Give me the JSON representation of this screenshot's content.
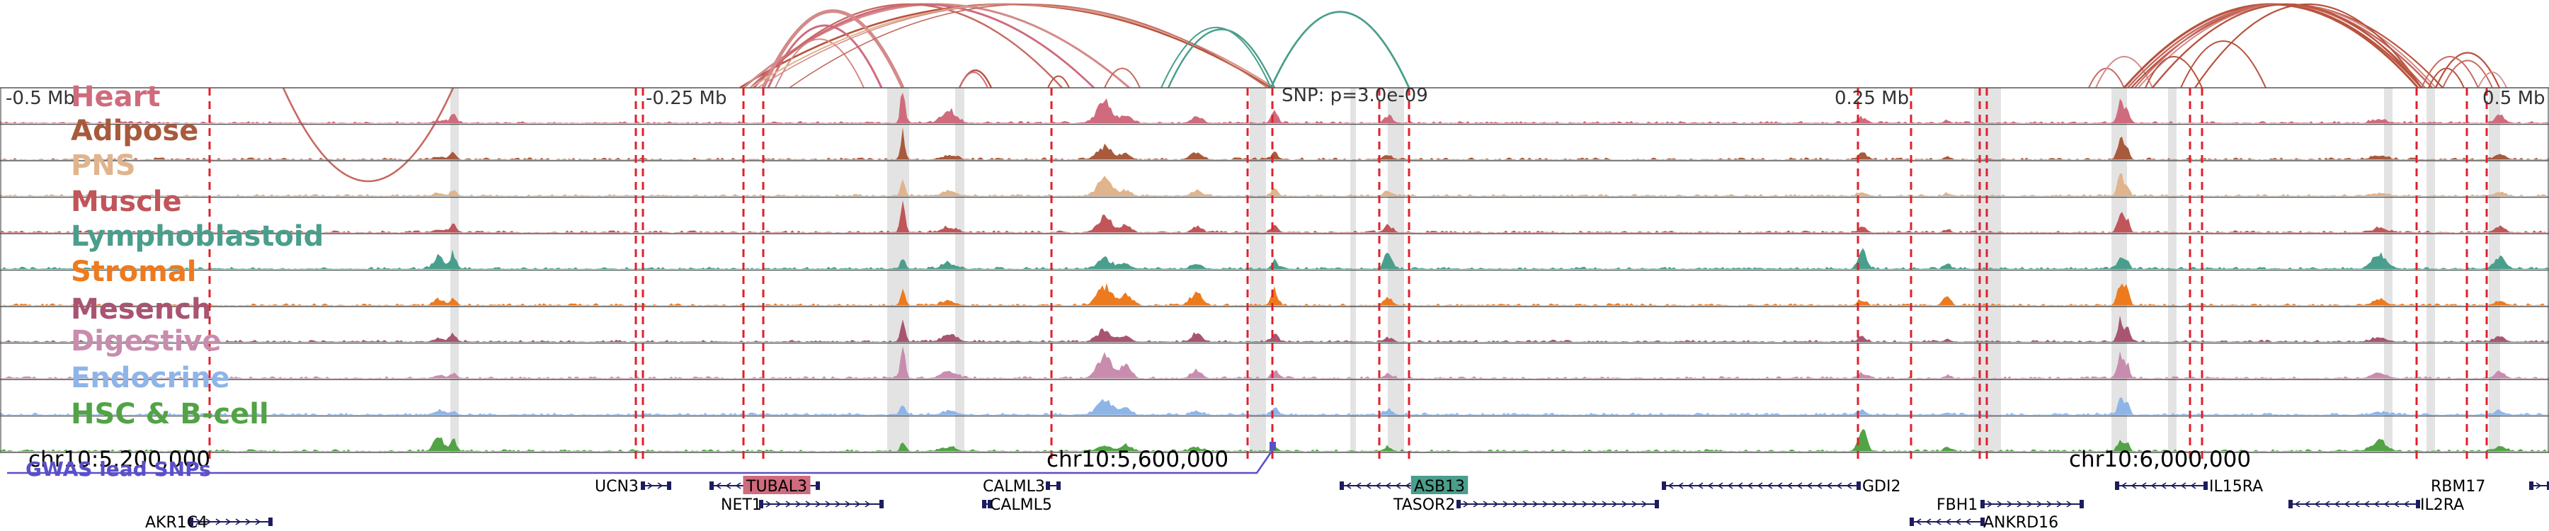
{
  "colors": {
    "highlight": "#e3e3e3",
    "dashed": "#e0202a",
    "axis": "#555555",
    "snp": "#5b4fc8",
    "gene": "#1c1c5e",
    "tubal3_bg": "#cf6b7d",
    "asb13_bg": "#4a9e8c"
  },
  "region": {
    "scale_labels": [
      "-0.5 Mb",
      "-0.25 Mb",
      "0.25 Mb",
      "0.5 Mb"
    ],
    "snp_annotation": "SNP: p=3.0e-09",
    "coordinates": [
      "chr10:5,200,000",
      "chr10:5,600,000",
      "chr10:6,000,000"
    ],
    "snp_track_title": "GWAS lead SNPs"
  },
  "tracks": [
    {
      "name": "Heart",
      "color": "#cf6b7d"
    },
    {
      "name": "Adipose",
      "color": "#a85a3c"
    },
    {
      "name": "PNS",
      "color": "#e0b48c"
    },
    {
      "name": "Muscle",
      "color": "#c0555a"
    },
    {
      "name": "Lymphoblastoid",
      "color": "#4a9e8c"
    },
    {
      "name": "Stromal",
      "color": "#ee7a1e"
    },
    {
      "name": "Mesench",
      "color": "#a85472"
    },
    {
      "name": "Digestive",
      "color": "#c88cae"
    },
    {
      "name": "Endocrine",
      "color": "#8fb5e8"
    },
    {
      "name": "HSC & B-cell",
      "color": "#52a346"
    }
  ],
  "arc_colors": [
    "#c66a60",
    "#b8533e",
    "#d48a8a",
    "#cf6b7d",
    "#4a9e8c",
    "#e0b48c"
  ],
  "genes": [
    {
      "name": "UCN3",
      "strand": "+",
      "highlight": false
    },
    {
      "name": "TUBAL3",
      "strand": "-",
      "highlight": true
    },
    {
      "name": "NET1",
      "strand": "+",
      "highlight": false
    },
    {
      "name": "AKR1C4",
      "strand": "+",
      "highlight": false
    },
    {
      "name": "CALML3",
      "strand": "+",
      "highlight": false
    },
    {
      "name": "CALML5",
      "strand": "-",
      "highlight": false
    },
    {
      "name": "ASB13",
      "strand": "-",
      "highlight": true
    },
    {
      "name": "TASOR2",
      "strand": "+",
      "highlight": false
    },
    {
      "name": "GDI2",
      "strand": "-",
      "highlight": false
    },
    {
      "name": "FBH1",
      "strand": "+",
      "highlight": false
    },
    {
      "name": "ANKRD16",
      "strand": "-",
      "highlight": false
    },
    {
      "name": "IL15RA",
      "strand": "-",
      "highlight": false
    },
    {
      "name": "RBM17",
      "strand": "+",
      "highlight": false
    },
    {
      "name": "IL2RA",
      "strand": "-",
      "highlight": false
    }
  ]
}
